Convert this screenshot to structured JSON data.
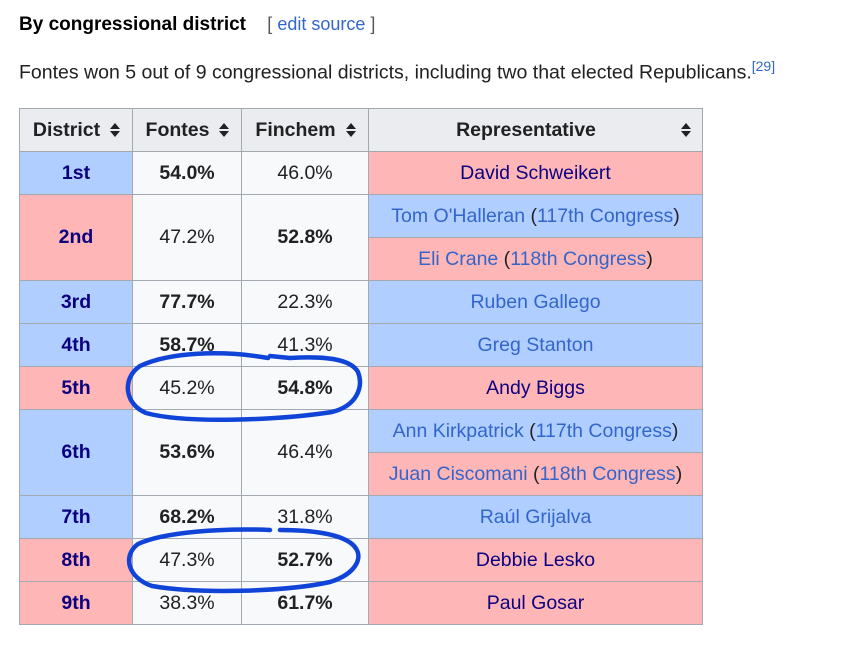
{
  "section": {
    "title": "By congressional district",
    "edit_open": "[",
    "edit_label": "edit source",
    "edit_close": "]"
  },
  "intro": {
    "text": "Fontes won 5 out of 9 congressional districts, including two that elected Republicans.",
    "ref": "[29]"
  },
  "table": {
    "headers": [
      "District",
      "Fontes",
      "Finchem",
      "Representative"
    ],
    "rows": [
      {
        "district": "1st",
        "fontes": "54.0%",
        "finchem": "46.0%",
        "reps": [
          {
            "name": "David Schweikert",
            "suffix": ""
          }
        ]
      },
      {
        "district": "2nd",
        "fontes": "47.2%",
        "finchem": "52.8%",
        "reps": [
          {
            "name": "Tom O'Halleran",
            "suffix": "117th Congress"
          },
          {
            "name": "Eli Crane",
            "suffix": "118th Congress"
          }
        ]
      },
      {
        "district": "3rd",
        "fontes": "77.7%",
        "finchem": "22.3%",
        "reps": [
          {
            "name": "Ruben Gallego",
            "suffix": ""
          }
        ]
      },
      {
        "district": "4th",
        "fontes": "58.7%",
        "finchem": "41.3%",
        "reps": [
          {
            "name": "Greg Stanton",
            "suffix": ""
          }
        ]
      },
      {
        "district": "5th",
        "fontes": "45.2%",
        "finchem": "54.8%",
        "reps": [
          {
            "name": "Andy Biggs",
            "suffix": ""
          }
        ]
      },
      {
        "district": "6th",
        "fontes": "53.6%",
        "finchem": "46.4%",
        "reps": [
          {
            "name": "Ann Kirkpatrick",
            "suffix": "117th Congress"
          },
          {
            "name": "Juan Ciscomani",
            "suffix": "118th Congress"
          }
        ]
      },
      {
        "district": "7th",
        "fontes": "68.2%",
        "finchem": "31.8%",
        "reps": [
          {
            "name": "Raúl Grijalva",
            "suffix": ""
          }
        ]
      },
      {
        "district": "8th",
        "fontes": "47.3%",
        "finchem": "52.7%",
        "reps": [
          {
            "name": "Debbie Lesko",
            "suffix": ""
          }
        ]
      },
      {
        "district": "9th",
        "fontes": "38.3%",
        "finchem": "61.7%",
        "reps": [
          {
            "name": "Paul Gosar",
            "suffix": ""
          }
        ]
      }
    ]
  },
  "colors": {
    "democrat": "#b0ceff",
    "republican": "#ffb6b6",
    "annotation": "#1043d8"
  }
}
